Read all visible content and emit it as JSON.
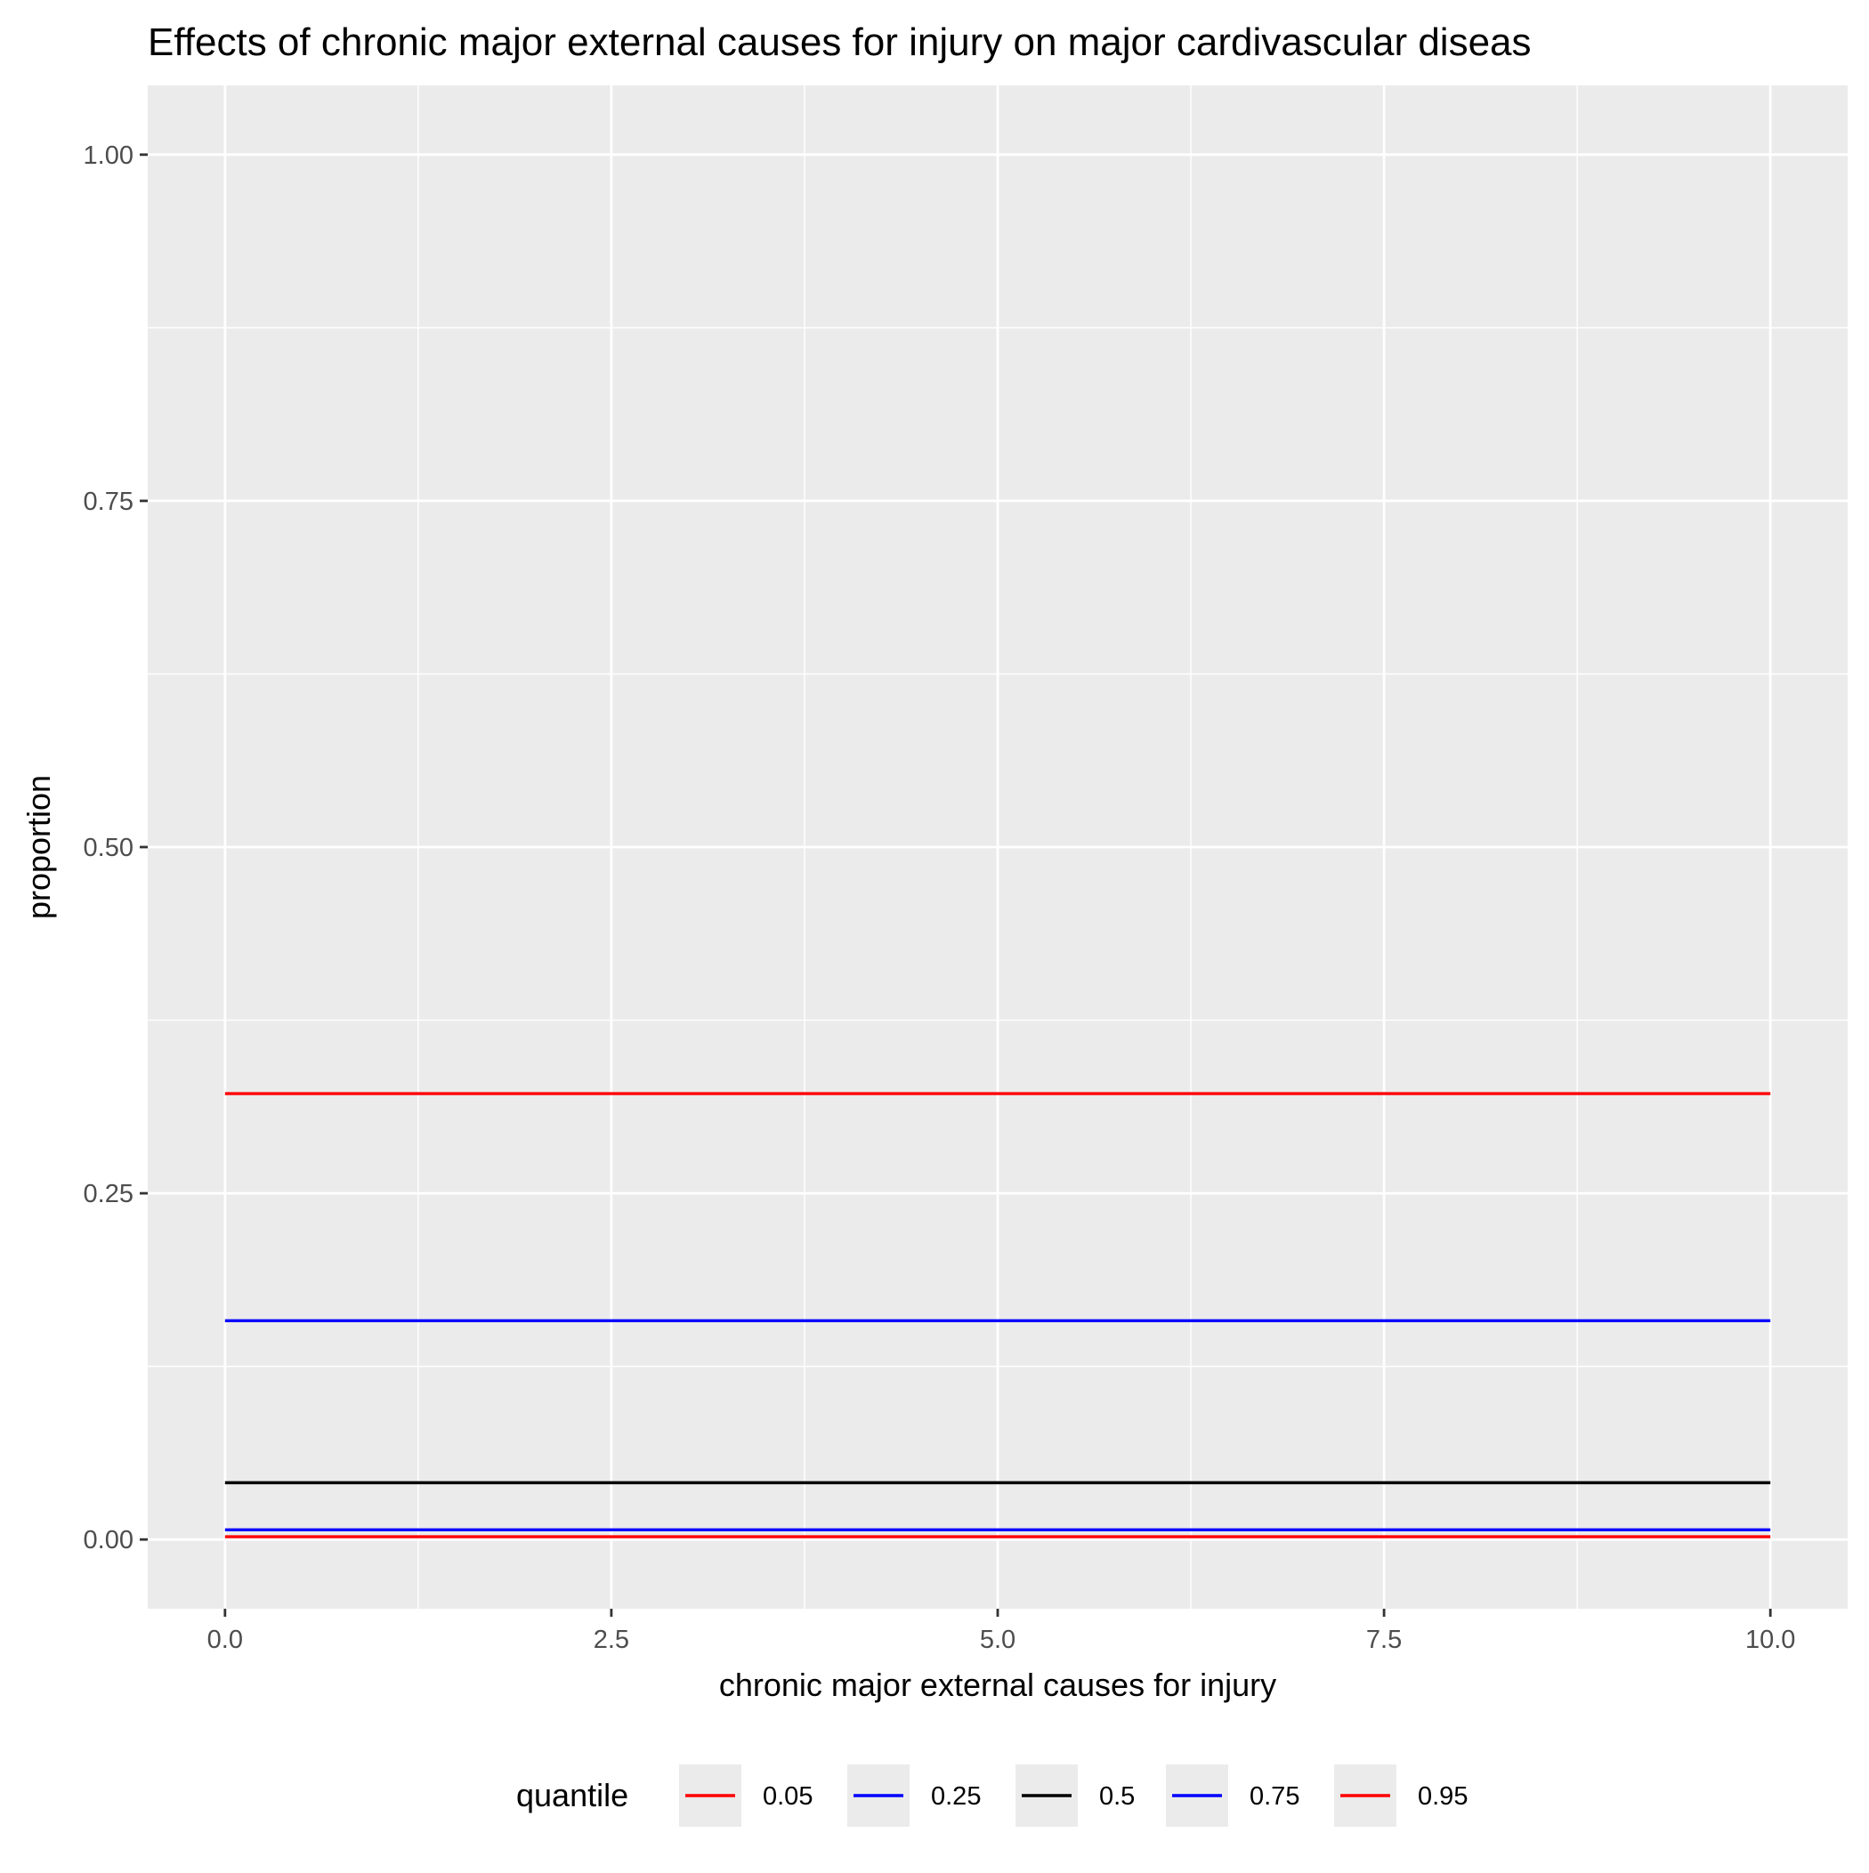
{
  "chart_data": {
    "type": "line",
    "title": "Effects of chronic major external causes for injury on major cardivascular diseas",
    "xlabel": "chronic major external causes for injury",
    "ylabel": "proportion",
    "xlim": [
      -0.5,
      10.5
    ],
    "ylim": [
      -0.05,
      1.05
    ],
    "x_ticks": [
      {
        "value": 0,
        "label": "0.0"
      },
      {
        "value": 2.5,
        "label": "2.5"
      },
      {
        "value": 5,
        "label": "5.0"
      },
      {
        "value": 7.5,
        "label": "7.5"
      },
      {
        "value": 10,
        "label": "10.0"
      }
    ],
    "y_ticks": [
      {
        "value": 0,
        "label": "0.00"
      },
      {
        "value": 0.25,
        "label": "0.25"
      },
      {
        "value": 0.5,
        "label": "0.50"
      },
      {
        "value": 0.75,
        "label": "0.75"
      },
      {
        "value": 1,
        "label": "1.00"
      }
    ],
    "grid": true,
    "legend": {
      "title": "quantile",
      "position": "bottom"
    },
    "x": [
      0,
      10
    ],
    "series": [
      {
        "name": "0.05",
        "color": "#ff0000",
        "values": [
          0.002,
          0.002
        ]
      },
      {
        "name": "0.25",
        "color": "#0000ff",
        "values": [
          0.007,
          0.007
        ]
      },
      {
        "name": "0.5",
        "color": "#000000",
        "values": [
          0.041,
          0.041
        ]
      },
      {
        "name": "0.75",
        "color": "#0000ff",
        "values": [
          0.158,
          0.158
        ]
      },
      {
        "name": "0.95",
        "color": "#ff0000",
        "values": [
          0.322,
          0.322
        ]
      }
    ]
  }
}
